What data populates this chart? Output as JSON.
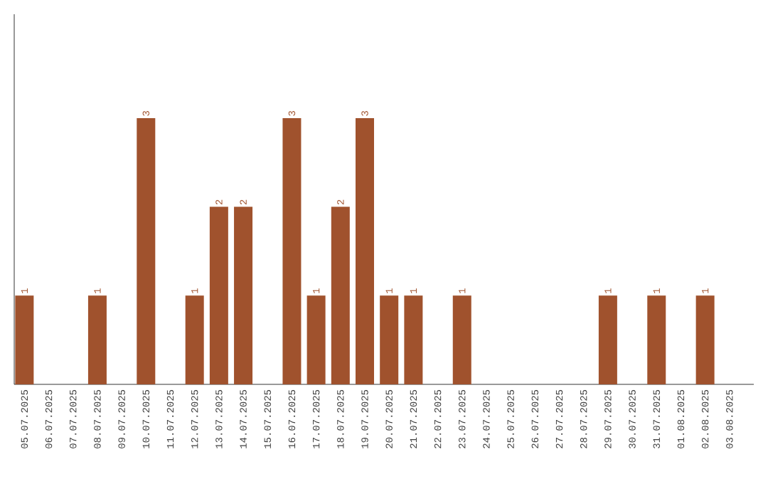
{
  "chart_data": {
    "type": "bar",
    "color": "#a0522d",
    "categories": [
      "05.07.2025",
      "06.07.2025",
      "07.07.2025",
      "08.07.2025",
      "09.07.2025",
      "10.07.2025",
      "11.07.2025",
      "12.07.2025",
      "13.07.2025",
      "14.07.2025",
      "15.07.2025",
      "16.07.2025",
      "17.07.2025",
      "18.07.2025",
      "19.07.2025",
      "20.07.2025",
      "21.07.2025",
      "22.07.2025",
      "23.07.2025",
      "24.07.2025",
      "25.07.2025",
      "26.07.2025",
      "27.07.2025",
      "28.07.2025",
      "29.07.2025",
      "30.07.2025",
      "31.07.2025",
      "01.08.2025",
      "02.08.2025",
      "03.08.2025"
    ],
    "values": [
      1,
      0,
      0,
      1,
      0,
      3,
      0,
      1,
      2,
      2,
      0,
      3,
      1,
      2,
      3,
      1,
      1,
      0,
      1,
      0,
      0,
      0,
      0,
      0,
      1,
      0,
      1,
      0,
      1,
      0
    ],
    "value_labels": [
      "1",
      null,
      null,
      "1",
      null,
      "3",
      null,
      "1",
      "2",
      "2",
      null,
      "3",
      "1",
      "2",
      "3",
      "1",
      "1",
      null,
      "1",
      null,
      null,
      null,
      null,
      null,
      "1",
      null,
      "1",
      null,
      "1",
      null
    ]
  }
}
